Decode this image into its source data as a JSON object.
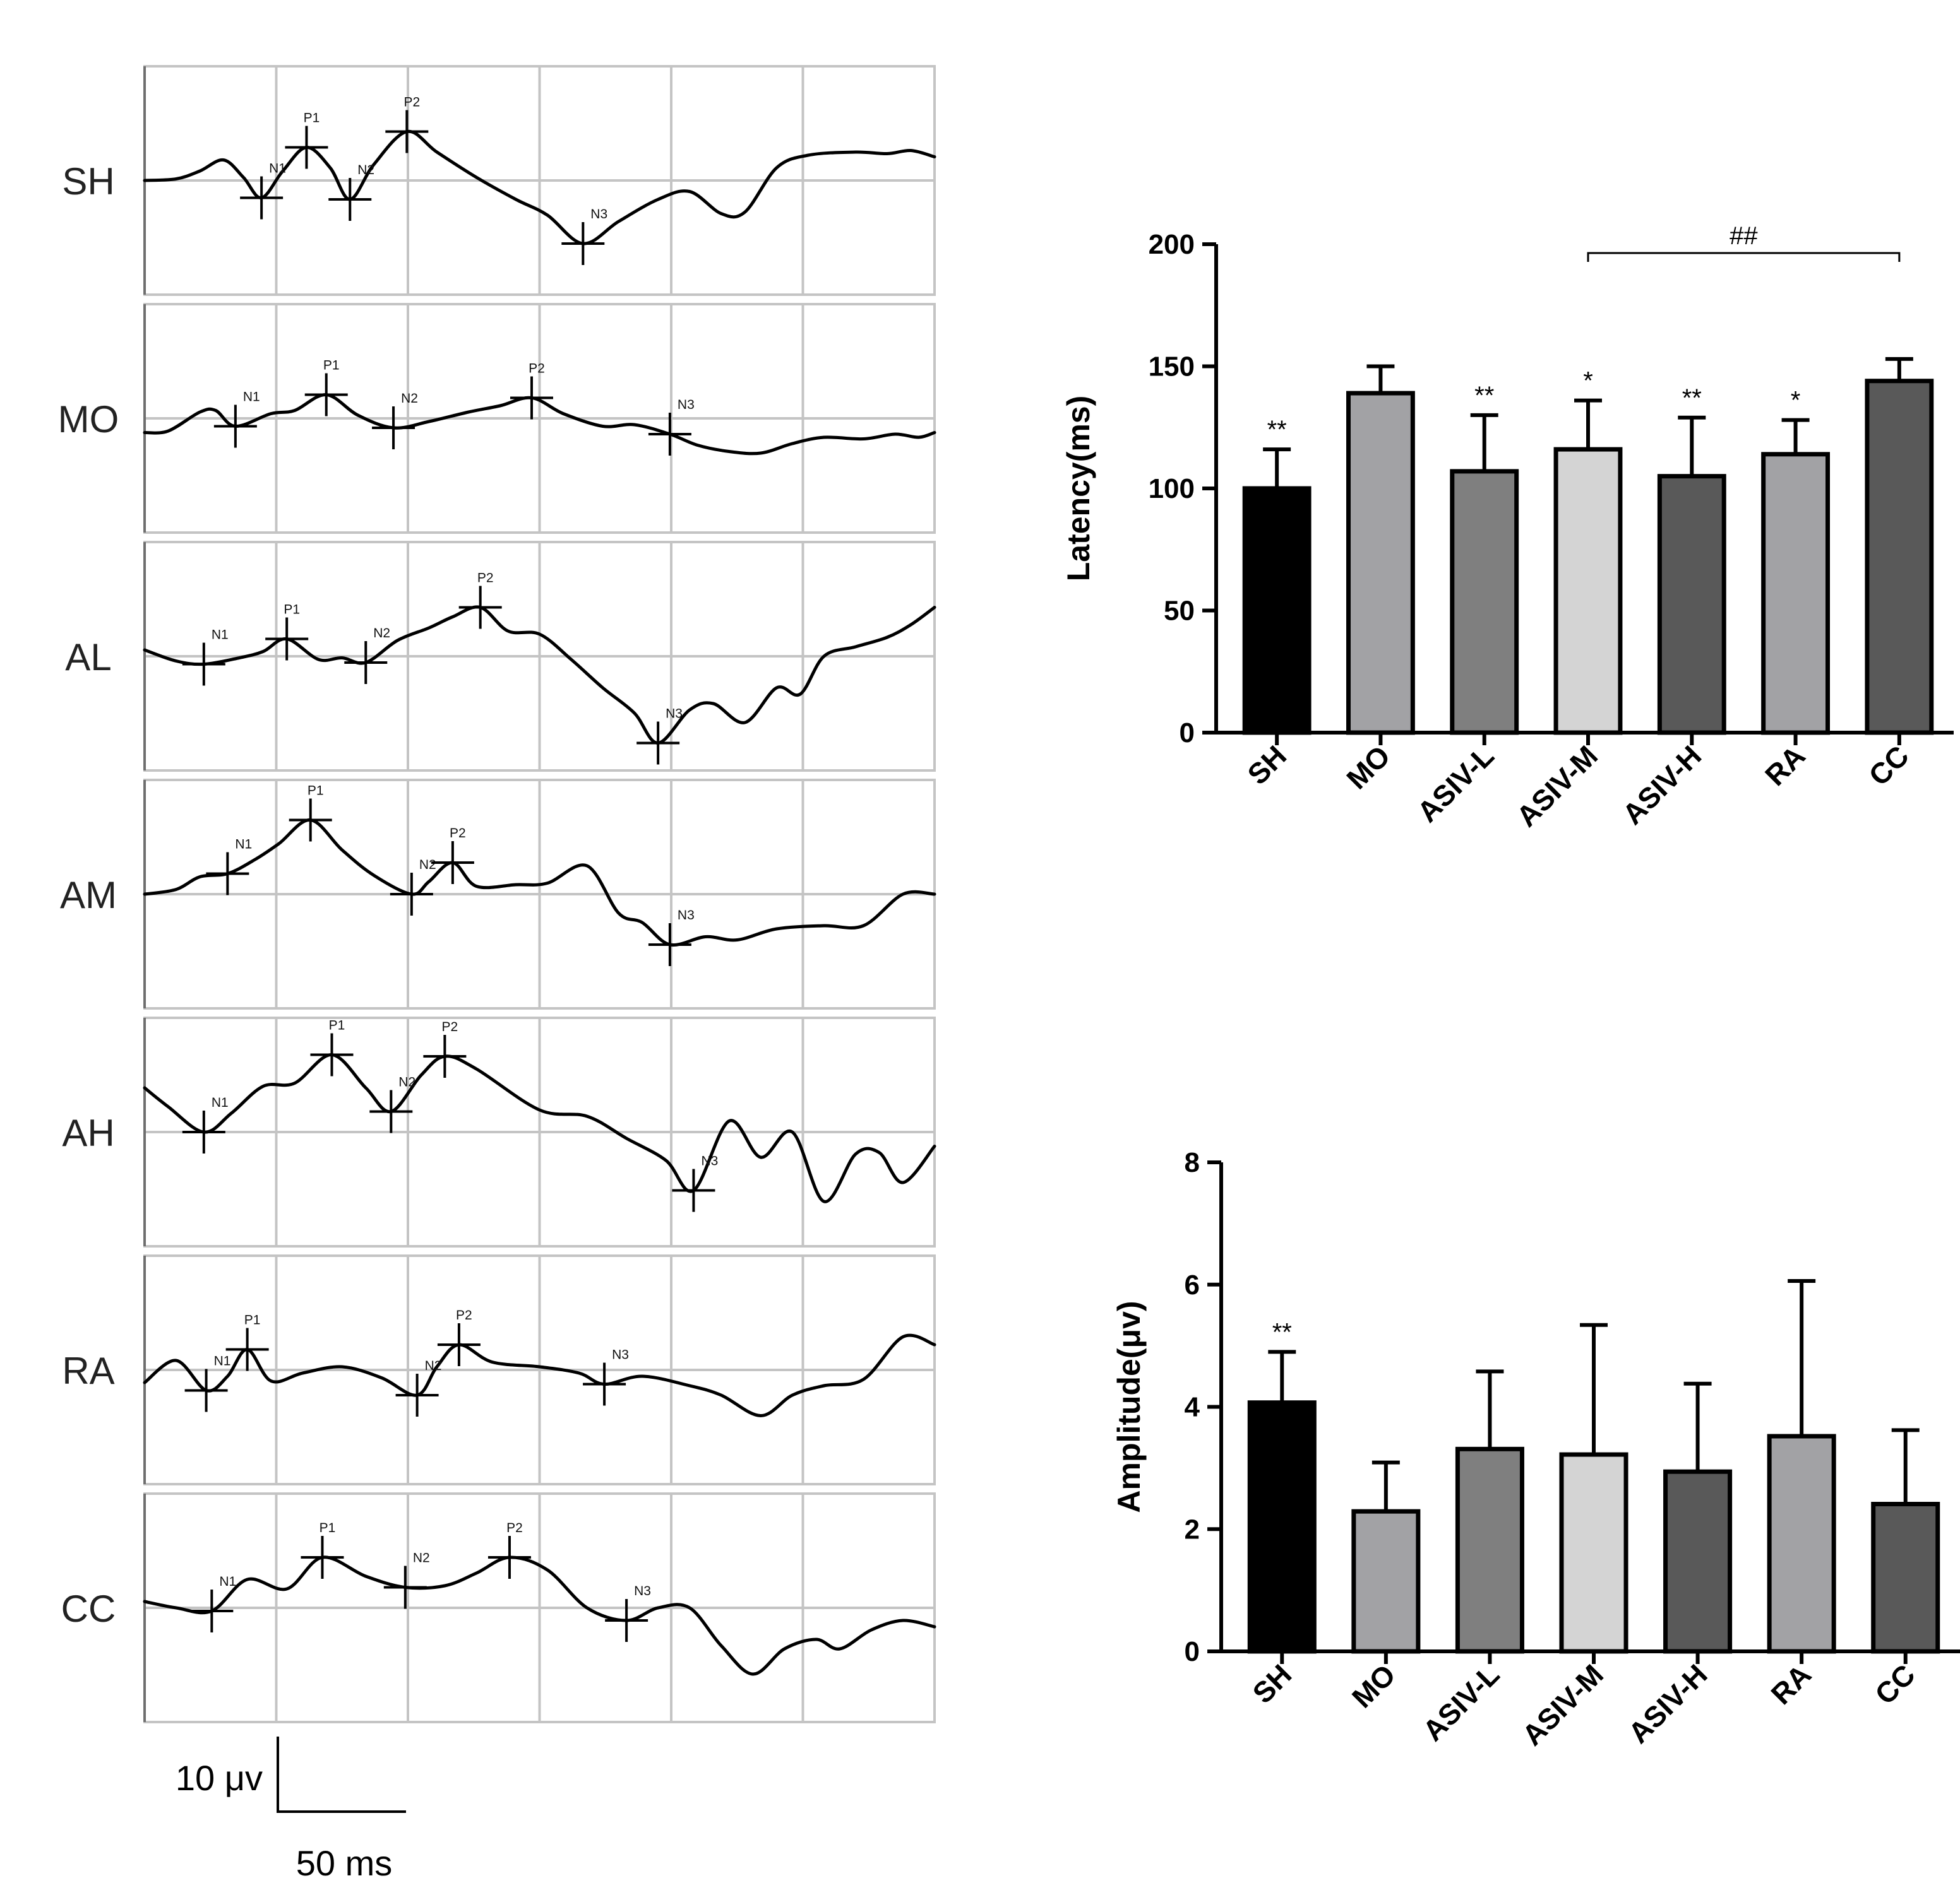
{
  "traces": {
    "groups": [
      {
        "label": "SH",
        "peaks": [
          {
            "name": "N1",
            "t": 0.148,
            "y": -0.55
          },
          {
            "name": "P1",
            "t": 0.205,
            "y": 1.05
          },
          {
            "name": "N2",
            "t": 0.26,
            "y": -0.6
          },
          {
            "name": "P2",
            "t": 0.332,
            "y": 1.55
          },
          {
            "name": "N3",
            "t": 0.555,
            "y": -2.0
          }
        ],
        "waveform": [
          [
            0,
            0
          ],
          [
            0.04,
            0.05
          ],
          [
            0.07,
            0.3
          ],
          [
            0.1,
            0.65
          ],
          [
            0.125,
            0.1
          ],
          [
            0.148,
            -0.55
          ],
          [
            0.175,
            0.3
          ],
          [
            0.205,
            1.05
          ],
          [
            0.235,
            0.4
          ],
          [
            0.26,
            -0.6
          ],
          [
            0.29,
            0.5
          ],
          [
            0.332,
            1.55
          ],
          [
            0.37,
            0.9
          ],
          [
            0.42,
            0.1
          ],
          [
            0.47,
            -0.6
          ],
          [
            0.51,
            -1.1
          ],
          [
            0.555,
            -2.0
          ],
          [
            0.6,
            -1.3
          ],
          [
            0.65,
            -0.6
          ],
          [
            0.69,
            -0.35
          ],
          [
            0.73,
            -1.05
          ],
          [
            0.76,
            -1.0
          ],
          [
            0.8,
            0.4
          ],
          [
            0.84,
            0.8
          ],
          [
            0.9,
            0.9
          ],
          [
            0.94,
            0.85
          ],
          [
            0.97,
            0.95
          ],
          [
            1.0,
            0.75
          ]
        ]
      },
      {
        "label": "MO",
        "peaks": [
          {
            "name": "N1",
            "t": 0.115,
            "y": -0.25
          },
          {
            "name": "P1",
            "t": 0.23,
            "y": 0.75
          },
          {
            "name": "N2",
            "t": 0.315,
            "y": -0.3
          },
          {
            "name": "P2",
            "t": 0.49,
            "y": 0.65
          },
          {
            "name": "N3",
            "t": 0.665,
            "y": -0.5
          }
        ],
        "waveform": [
          [
            0,
            -0.45
          ],
          [
            0.03,
            -0.4
          ],
          [
            0.07,
            0.2
          ],
          [
            0.09,
            0.25
          ],
          [
            0.115,
            -0.25
          ],
          [
            0.16,
            0.15
          ],
          [
            0.19,
            0.25
          ],
          [
            0.23,
            0.75
          ],
          [
            0.27,
            0.1
          ],
          [
            0.315,
            -0.3
          ],
          [
            0.36,
            -0.1
          ],
          [
            0.41,
            0.2
          ],
          [
            0.45,
            0.4
          ],
          [
            0.49,
            0.65
          ],
          [
            0.53,
            0.15
          ],
          [
            0.58,
            -0.25
          ],
          [
            0.62,
            -0.2
          ],
          [
            0.665,
            -0.5
          ],
          [
            0.7,
            -0.85
          ],
          [
            0.74,
            -1.05
          ],
          [
            0.78,
            -1.1
          ],
          [
            0.82,
            -0.8
          ],
          [
            0.86,
            -0.6
          ],
          [
            0.91,
            -0.65
          ],
          [
            0.95,
            -0.5
          ],
          [
            0.98,
            -0.6
          ],
          [
            1.0,
            -0.45
          ]
        ]
      },
      {
        "label": "AL",
        "peaks": [
          {
            "name": "N1",
            "t": 0.075,
            "y": -0.25
          },
          {
            "name": "P1",
            "t": 0.18,
            "y": 0.55
          },
          {
            "name": "N2",
            "t": 0.28,
            "y": -0.2
          },
          {
            "name": "P2",
            "t": 0.425,
            "y": 1.55
          },
          {
            "name": "N3",
            "t": 0.65,
            "y": -2.75
          }
        ],
        "waveform": [
          [
            0,
            0.2
          ],
          [
            0.04,
            -0.15
          ],
          [
            0.075,
            -0.25
          ],
          [
            0.12,
            -0.05
          ],
          [
            0.15,
            0.15
          ],
          [
            0.18,
            0.55
          ],
          [
            0.22,
            -0.1
          ],
          [
            0.25,
            -0.05
          ],
          [
            0.28,
            -0.2
          ],
          [
            0.32,
            0.5
          ],
          [
            0.36,
            0.9
          ],
          [
            0.39,
            1.25
          ],
          [
            0.425,
            1.55
          ],
          [
            0.46,
            0.8
          ],
          [
            0.5,
            0.7
          ],
          [
            0.54,
            -0.1
          ],
          [
            0.58,
            -1.0
          ],
          [
            0.62,
            -1.8
          ],
          [
            0.65,
            -2.75
          ],
          [
            0.69,
            -1.7
          ],
          [
            0.72,
            -1.5
          ],
          [
            0.76,
            -2.1
          ],
          [
            0.8,
            -1.0
          ],
          [
            0.83,
            -1.2
          ],
          [
            0.86,
            0.0
          ],
          [
            0.9,
            0.3
          ],
          [
            0.94,
            0.6
          ],
          [
            0.97,
            1.0
          ],
          [
            1.0,
            1.55
          ]
        ]
      },
      {
        "label": "AM",
        "peaks": [
          {
            "name": "N1",
            "t": 0.105,
            "y": 0.65
          },
          {
            "name": "P1",
            "t": 0.21,
            "y": 2.35
          },
          {
            "name": "N2",
            "t": 0.338,
            "y": 0.0
          },
          {
            "name": "P2",
            "t": 0.39,
            "y": 1.0
          },
          {
            "name": "N3",
            "t": 0.665,
            "y": -1.6
          }
        ],
        "waveform": [
          [
            0,
            0
          ],
          [
            0.04,
            0.15
          ],
          [
            0.07,
            0.55
          ],
          [
            0.105,
            0.65
          ],
          [
            0.14,
            1.1
          ],
          [
            0.17,
            1.6
          ],
          [
            0.21,
            2.35
          ],
          [
            0.25,
            1.4
          ],
          [
            0.29,
            0.6
          ],
          [
            0.338,
            0.0
          ],
          [
            0.36,
            0.4
          ],
          [
            0.39,
            1.0
          ],
          [
            0.42,
            0.25
          ],
          [
            0.47,
            0.3
          ],
          [
            0.51,
            0.35
          ],
          [
            0.56,
            0.9
          ],
          [
            0.6,
            -0.6
          ],
          [
            0.63,
            -0.9
          ],
          [
            0.665,
            -1.6
          ],
          [
            0.71,
            -1.35
          ],
          [
            0.75,
            -1.45
          ],
          [
            0.8,
            -1.1
          ],
          [
            0.86,
            -1.0
          ],
          [
            0.91,
            -1.0
          ],
          [
            0.96,
            0.0
          ],
          [
            1.0,
            0.0
          ]
        ]
      },
      {
        "label": "AH",
        "peaks": [
          {
            "name": "N1",
            "t": 0.075,
            "y": 0.0
          },
          {
            "name": "P1",
            "t": 0.237,
            "y": 2.45
          },
          {
            "name": "N2",
            "t": 0.312,
            "y": 0.65
          },
          {
            "name": "P2",
            "t": 0.38,
            "y": 2.4
          },
          {
            "name": "N3",
            "t": 0.695,
            "y": -1.85
          }
        ],
        "waveform": [
          [
            0,
            1.4
          ],
          [
            0.03,
            0.8
          ],
          [
            0.075,
            0.0
          ],
          [
            0.11,
            0.6
          ],
          [
            0.15,
            1.45
          ],
          [
            0.19,
            1.55
          ],
          [
            0.237,
            2.45
          ],
          [
            0.28,
            1.4
          ],
          [
            0.312,
            0.65
          ],
          [
            0.35,
            1.8
          ],
          [
            0.38,
            2.4
          ],
          [
            0.42,
            2.0
          ],
          [
            0.5,
            0.7
          ],
          [
            0.56,
            0.5
          ],
          [
            0.61,
            -0.2
          ],
          [
            0.66,
            -0.9
          ],
          [
            0.695,
            -1.85
          ],
          [
            0.74,
            0.35
          ],
          [
            0.78,
            -0.8
          ],
          [
            0.82,
            0.0
          ],
          [
            0.86,
            -2.2
          ],
          [
            0.9,
            -0.7
          ],
          [
            0.93,
            -0.65
          ],
          [
            0.96,
            -1.6
          ],
          [
            1.0,
            -0.45
          ]
        ]
      },
      {
        "label": "RA",
        "peaks": [
          {
            "name": "N1",
            "t": 0.078,
            "y": -0.65
          },
          {
            "name": "P1",
            "t": 0.13,
            "y": 0.65
          },
          {
            "name": "N2",
            "t": 0.345,
            "y": -0.8
          },
          {
            "name": "P2",
            "t": 0.398,
            "y": 0.8
          },
          {
            "name": "N3",
            "t": 0.582,
            "y": -0.45
          }
        ],
        "waveform": [
          [
            0,
            -0.4
          ],
          [
            0.04,
            0.3
          ],
          [
            0.078,
            -0.65
          ],
          [
            0.105,
            -0.2
          ],
          [
            0.13,
            0.65
          ],
          [
            0.16,
            -0.35
          ],
          [
            0.2,
            -0.1
          ],
          [
            0.25,
            0.1
          ],
          [
            0.3,
            -0.25
          ],
          [
            0.345,
            -0.8
          ],
          [
            0.37,
            0.1
          ],
          [
            0.398,
            0.8
          ],
          [
            0.44,
            0.25
          ],
          [
            0.5,
            0.1
          ],
          [
            0.55,
            -0.1
          ],
          [
            0.582,
            -0.45
          ],
          [
            0.63,
            -0.2
          ],
          [
            0.69,
            -0.5
          ],
          [
            0.73,
            -0.8
          ],
          [
            0.78,
            -1.45
          ],
          [
            0.82,
            -0.8
          ],
          [
            0.86,
            -0.5
          ],
          [
            0.91,
            -0.3
          ],
          [
            0.96,
            1.05
          ],
          [
            1.0,
            0.8
          ]
        ]
      },
      {
        "label": "CC",
        "peaks": [
          {
            "name": "N1",
            "t": 0.085,
            "y": -0.1
          },
          {
            "name": "P1",
            "t": 0.225,
            "y": 1.6
          },
          {
            "name": "N2",
            "t": 0.33,
            "y": 0.65
          },
          {
            "name": "P2",
            "t": 0.462,
            "y": 1.6
          },
          {
            "name": "N3",
            "t": 0.61,
            "y": -0.4
          }
        ],
        "waveform": [
          [
            0,
            0.2
          ],
          [
            0.04,
            0.0
          ],
          [
            0.085,
            -0.1
          ],
          [
            0.13,
            0.9
          ],
          [
            0.18,
            0.6
          ],
          [
            0.225,
            1.6
          ],
          [
            0.28,
            1.0
          ],
          [
            0.33,
            0.65
          ],
          [
            0.38,
            0.7
          ],
          [
            0.42,
            1.1
          ],
          [
            0.462,
            1.6
          ],
          [
            0.51,
            1.2
          ],
          [
            0.56,
            0.0
          ],
          [
            0.61,
            -0.4
          ],
          [
            0.65,
            0.0
          ],
          [
            0.69,
            0.0
          ],
          [
            0.73,
            -1.2
          ],
          [
            0.77,
            -2.1
          ],
          [
            0.81,
            -1.3
          ],
          [
            0.85,
            -1.0
          ],
          [
            0.88,
            -1.3
          ],
          [
            0.92,
            -0.7
          ],
          [
            0.96,
            -0.4
          ],
          [
            1.0,
            -0.6
          ]
        ]
      }
    ]
  },
  "scale_bar": {
    "amplitude_label": "10 μv",
    "time_label": "50 ms"
  },
  "chart_data": [
    {
      "type": "bar",
      "title": "",
      "xlabel": "",
      "ylabel": "Latency(ms)",
      "ylim": [
        0,
        200
      ],
      "yticks": [
        0,
        50,
        100,
        150,
        200
      ],
      "categories": [
        "SH",
        "MO",
        "ASIV-L",
        "ASIV-M",
        "ASIV-H",
        "RA",
        "CC"
      ],
      "values": [
        100,
        139,
        107,
        116,
        105,
        114,
        144
      ],
      "errors": [
        16,
        11,
        23,
        20,
        24,
        14,
        9
      ],
      "significance": [
        "**",
        "",
        "**",
        "*",
        "**",
        "*",
        ""
      ],
      "colors": [
        "#000000",
        "#a2a2a5",
        "#7f7f7f",
        "#d4d4d4",
        "#595959",
        "#a2a2a5",
        "#595959"
      ],
      "bracket": {
        "from": "ASIV-M",
        "to": "CC",
        "label": "##"
      }
    },
    {
      "type": "bar",
      "title": "",
      "xlabel": "",
      "ylabel": "Amplitude(μv)",
      "ylim": [
        0,
        8
      ],
      "yticks": [
        0,
        2,
        4,
        6,
        8
      ],
      "categories": [
        "SH",
        "MO",
        "ASIV-L",
        "ASIV-M",
        "ASIV-H",
        "RA",
        "CC"
      ],
      "values": [
        4.07,
        2.29,
        3.31,
        3.22,
        2.94,
        3.52,
        2.41
      ],
      "errors": [
        0.83,
        0.8,
        1.27,
        2.12,
        1.44,
        2.54,
        1.21
      ],
      "significance": [
        "**",
        "",
        "",
        "",
        "",
        "",
        ""
      ],
      "colors": [
        "#000000",
        "#a2a2a5",
        "#7f7f7f",
        "#d4d4d4",
        "#595959",
        "#a2a2a5",
        "#595959"
      ]
    }
  ]
}
